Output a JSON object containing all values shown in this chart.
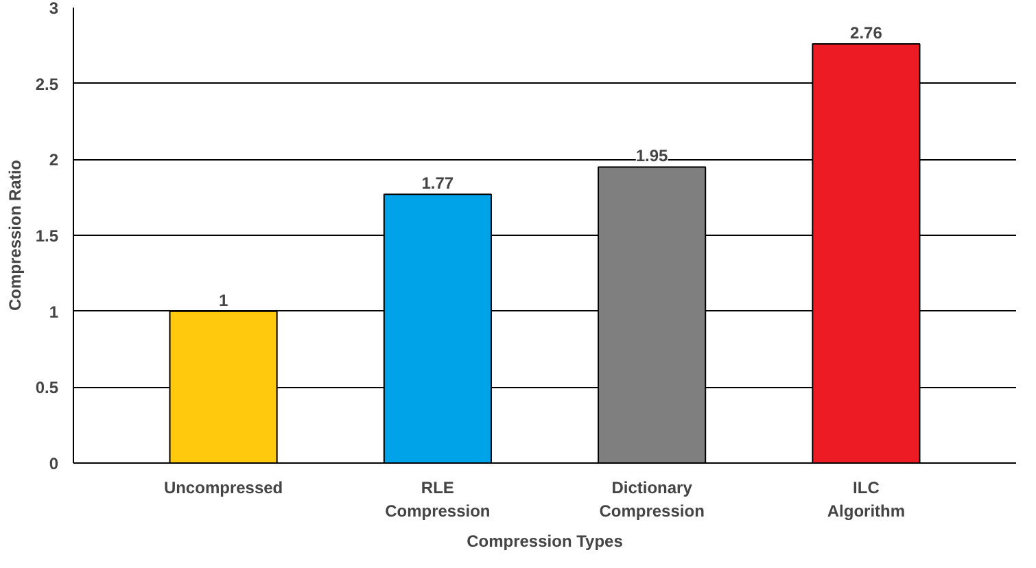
{
  "chart_data": {
    "type": "bar",
    "ylabel": "Compression Ratio",
    "xlabel": "Compression Types",
    "categories": [
      "Uncompressed",
      "RLE\nCompression",
      "Dictionary\nCompression",
      "ILC\nAlgorithm"
    ],
    "values": [
      1,
      1.77,
      1.95,
      2.76
    ],
    "colors": [
      "#ffc90e",
      "#00a2e8",
      "#7f7f7f",
      "#ed1c24"
    ],
    "ylim": [
      0,
      3
    ],
    "yticks": [
      0,
      0.5,
      1,
      1.5,
      2,
      2.5,
      3
    ],
    "grid": "y",
    "data_labels": true
  }
}
